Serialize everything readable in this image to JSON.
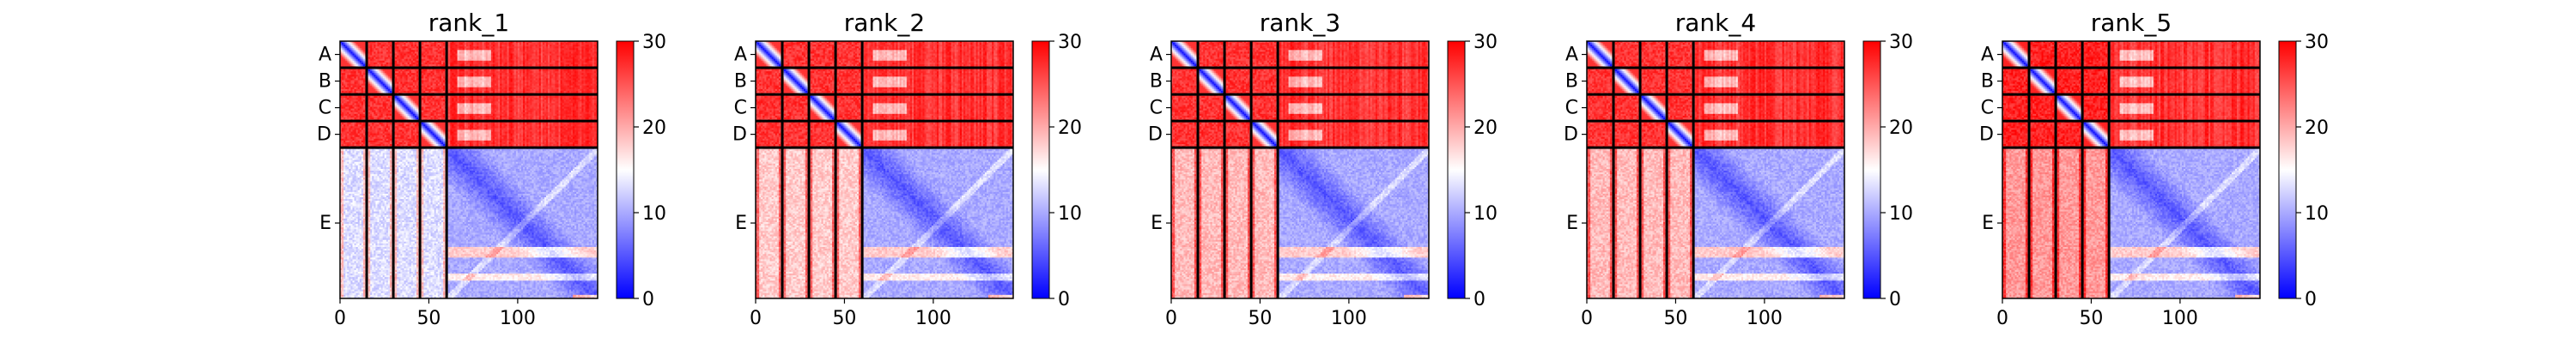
{
  "chart_data": {
    "type": "heatmap",
    "description": "Five predicted aligned error (PAE) matrices, one per model rank. Blue = low error, red = high error.",
    "x_range": [
      0,
      145
    ],
    "y_range": [
      0,
      145
    ],
    "xticks": [
      "0",
      "50",
      "100"
    ],
    "chain_labels": [
      "A",
      "B",
      "C",
      "D",
      "E"
    ],
    "chain_lengths": [
      15,
      15,
      15,
      15,
      85
    ],
    "colorbar": {
      "min": 0,
      "max": 30,
      "ticks": [
        "0",
        "10",
        "20",
        "30"
      ],
      "colors": [
        "#0000ff",
        "#ffffff",
        "#ff0000"
      ]
    },
    "panels": [
      {
        "title": "rank_1",
        "inter_peptide": 27,
        "peptide_to_E": 27,
        "E_to_peptide": 13,
        "E_to_E": 5
      },
      {
        "title": "rank_2",
        "inter_peptide": 27,
        "peptide_to_E": 27,
        "E_to_peptide": 18,
        "E_to_E": 5
      },
      {
        "title": "rank_3",
        "inter_peptide": 27,
        "peptide_to_E": 27,
        "E_to_peptide": 19,
        "E_to_E": 5
      },
      {
        "title": "rank_4",
        "inter_peptide": 27,
        "peptide_to_E": 27,
        "E_to_peptide": 19,
        "E_to_E": 5
      },
      {
        "title": "rank_5",
        "inter_peptide": 28,
        "peptide_to_E": 27,
        "E_to_peptide": 21,
        "E_to_E": 5
      }
    ]
  }
}
